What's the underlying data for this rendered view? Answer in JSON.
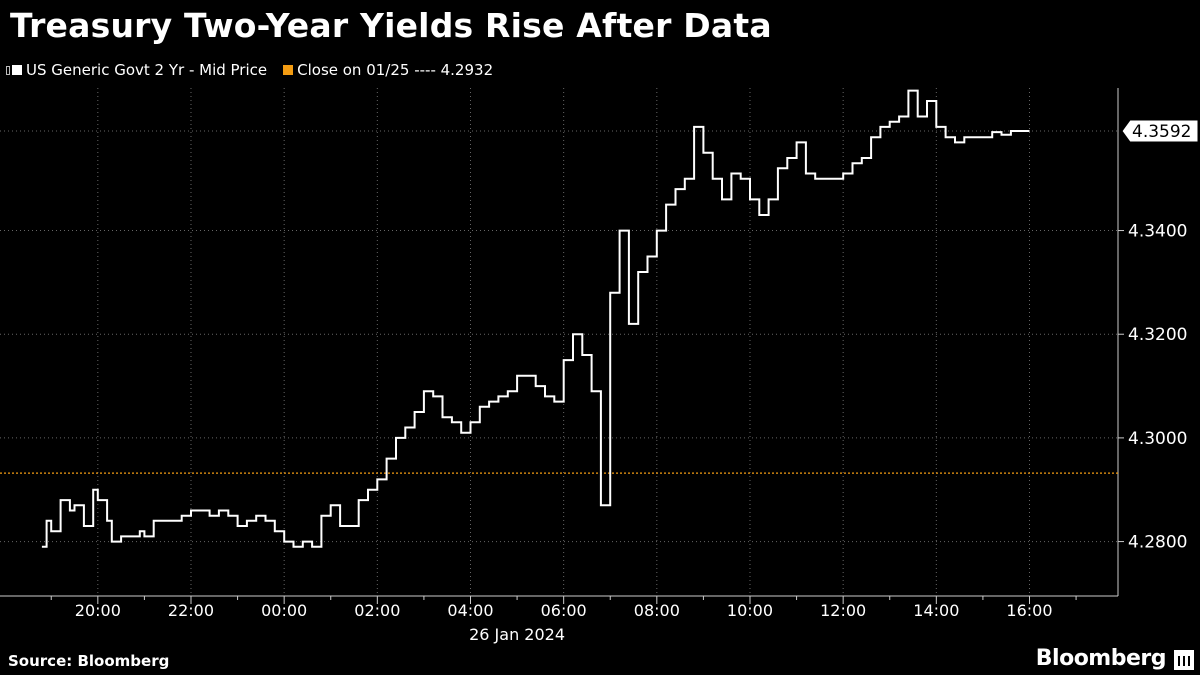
{
  "header": {
    "title": "Treasury Two-Year Yields Rise After Data"
  },
  "legend": {
    "series_label": "US Generic Govt 2 Yr - Mid Price",
    "close_label": "Close on 01/25 ---- 4.2932"
  },
  "footer": {
    "source": "Source: Bloomberg",
    "brand": "Bloomberg"
  },
  "colors": {
    "background": "#000000",
    "series": "#ffffff",
    "close_line": "#f39c12",
    "grid": "#555555"
  },
  "chart_data": {
    "type": "line",
    "title": "Treasury Two-Year Yields Rise After Data",
    "date_label": "26 Jan 2024",
    "x_ticks": [
      "20:00",
      "22:00",
      "00:00",
      "02:00",
      "04:00",
      "06:00",
      "08:00",
      "10:00",
      "12:00",
      "14:00",
      "16:00"
    ],
    "y_ticks": [
      "4.2800",
      "4.3000",
      "4.3200",
      "4.3400"
    ],
    "ylim": [
      4.2695,
      4.3675
    ],
    "xlim_hours": [
      17.9,
      41.9
    ],
    "close_value": 4.2932,
    "last_value": 4.3592,
    "last_value_label": "4.3592",
    "grid": true,
    "series": [
      {
        "name": "US Generic Govt 2 Yr - Mid Price",
        "x_hours": [
          18.8,
          18.9,
          19.0,
          19.2,
          19.4,
          19.5,
          19.7,
          19.9,
          20.0,
          20.2,
          20.3,
          20.5,
          20.7,
          20.9,
          21.0,
          21.2,
          21.4,
          21.6,
          21.8,
          22.0,
          22.2,
          22.4,
          22.6,
          22.8,
          23.0,
          23.2,
          23.4,
          23.6,
          23.8,
          24.0,
          24.2,
          24.4,
          24.6,
          24.8,
          25.0,
          25.2,
          25.4,
          25.6,
          25.8,
          26.0,
          26.2,
          26.4,
          26.6,
          26.8,
          27.0,
          27.2,
          27.4,
          27.6,
          27.8,
          28.0,
          28.2,
          28.4,
          28.6,
          28.8,
          29.0,
          29.2,
          29.4,
          29.6,
          29.8,
          30.0,
          30.2,
          30.4,
          30.6,
          30.8,
          31.0,
          31.2,
          31.4,
          31.6,
          31.8,
          32.0,
          32.2,
          32.4,
          32.6,
          32.8,
          33.0,
          33.2,
          33.4,
          33.6,
          33.8,
          34.0,
          34.2,
          34.4,
          34.6,
          34.8,
          35.0,
          35.2,
          35.4,
          35.6,
          35.8,
          36.0,
          36.2,
          36.4,
          36.6,
          36.8,
          37.0,
          37.2,
          37.4,
          37.6,
          37.8,
          38.0,
          38.2,
          38.4,
          38.6,
          38.8,
          39.0,
          39.2,
          39.4,
          39.6,
          39.8,
          40.0
        ],
        "values": [
          4.279,
          4.284,
          4.282,
          4.288,
          4.286,
          4.287,
          4.283,
          4.29,
          4.288,
          4.284,
          4.28,
          4.281,
          4.281,
          4.282,
          4.281,
          4.284,
          4.284,
          4.284,
          4.285,
          4.286,
          4.286,
          4.285,
          4.286,
          4.285,
          4.283,
          4.284,
          4.285,
          4.284,
          4.282,
          4.28,
          4.279,
          4.28,
          4.279,
          4.285,
          4.287,
          4.283,
          4.283,
          4.288,
          4.29,
          4.292,
          4.296,
          4.3,
          4.302,
          4.305,
          4.309,
          4.308,
          4.304,
          4.303,
          4.301,
          4.303,
          4.306,
          4.307,
          4.308,
          4.309,
          4.312,
          4.312,
          4.31,
          4.308,
          4.307,
          4.315,
          4.32,
          4.316,
          4.309,
          4.287,
          4.328,
          4.34,
          4.322,
          4.332,
          4.335,
          4.34,
          4.345,
          4.348,
          4.35,
          4.36,
          4.355,
          4.35,
          4.346,
          4.351,
          4.35,
          4.346,
          4.343,
          4.346,
          4.352,
          4.354,
          4.357,
          4.351,
          4.35,
          4.35,
          4.35,
          4.351,
          4.353,
          4.354,
          4.358,
          4.36,
          4.361,
          4.362,
          4.367,
          4.362,
          4.365,
          4.36,
          4.358,
          4.357,
          4.358,
          4.358,
          4.358,
          4.359,
          4.3585,
          4.3592,
          4.3592,
          4.3592
        ]
      }
    ]
  }
}
